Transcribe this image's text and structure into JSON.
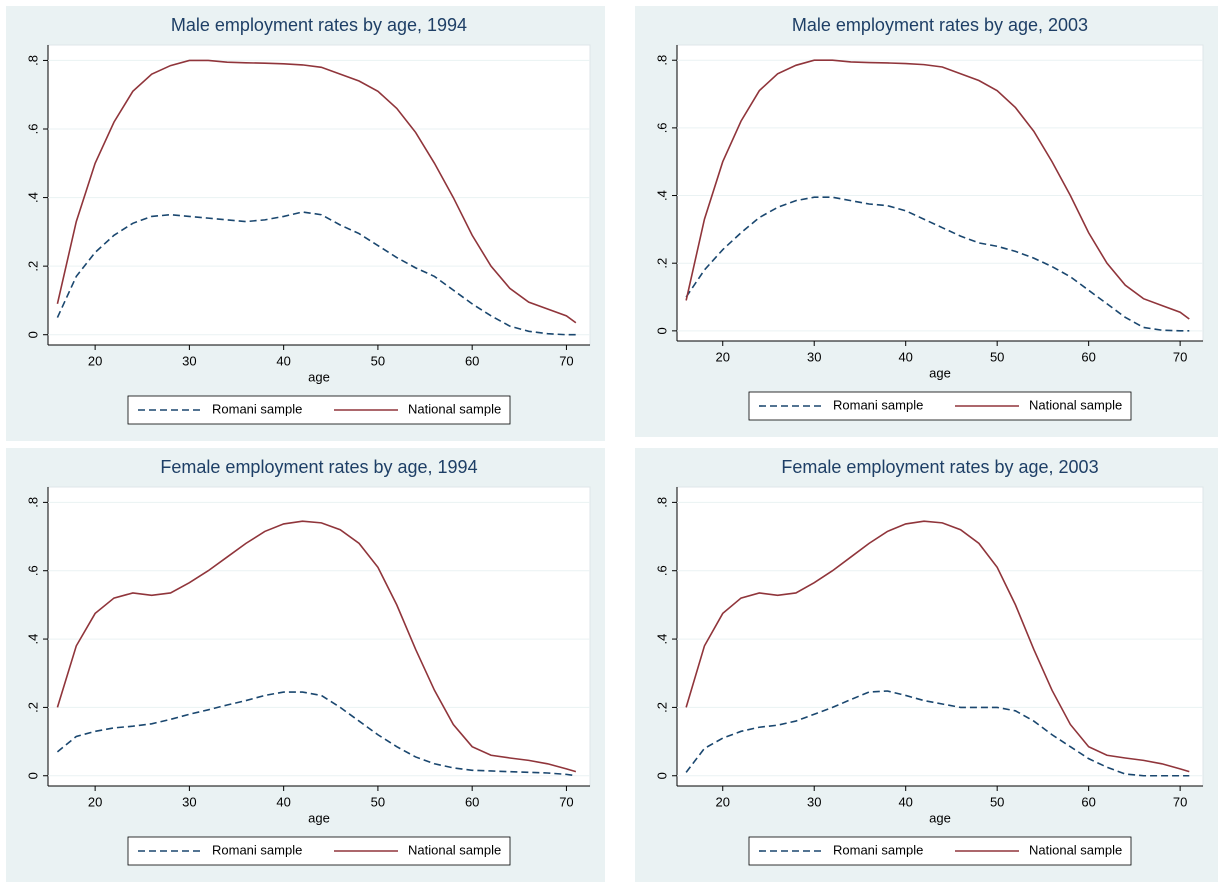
{
  "chart_data": [
    {
      "type": "line",
      "title": "Male employment rates by age, 1994",
      "x_label": "age",
      "x": [
        16,
        18,
        20,
        22,
        24,
        26,
        28,
        30,
        32,
        34,
        36,
        38,
        40,
        42,
        44,
        46,
        48,
        50,
        52,
        54,
        56,
        58,
        60,
        62,
        64,
        66,
        68,
        70,
        71
      ],
      "series": [
        {
          "name": "Romani sample",
          "color": "#1a476f",
          "line_style": "dashed",
          "values": [
            0.05,
            0.17,
            0.24,
            0.29,
            0.325,
            0.345,
            0.35,
            0.345,
            0.34,
            0.335,
            0.33,
            0.335,
            0.345,
            0.358,
            0.35,
            0.32,
            0.295,
            0.26,
            0.225,
            0.195,
            0.17,
            0.13,
            0.09,
            0.055,
            0.025,
            0.01,
            0.003,
            0,
            0
          ]
        },
        {
          "name": "National sample",
          "color": "#90353b",
          "line_style": "solid",
          "values": [
            0.09,
            0.33,
            0.5,
            0.62,
            0.71,
            0.76,
            0.785,
            0.8,
            0.8,
            0.795,
            0.793,
            0.792,
            0.79,
            0.787,
            0.78,
            0.76,
            0.74,
            0.71,
            0.66,
            0.59,
            0.5,
            0.4,
            0.29,
            0.2,
            0.135,
            0.095,
            0.075,
            0.055,
            0.035
          ]
        }
      ],
      "xlim": [
        15,
        72.5
      ],
      "xticks": [
        20,
        30,
        40,
        50,
        60,
        70
      ],
      "ylim": [
        -0.03,
        0.845
      ],
      "yticks": [
        0,
        {
          "value": 0.2,
          "label": ".2"
        },
        {
          "value": 0.4,
          "label": ".4"
        },
        {
          "value": 0.6,
          "label": ".6"
        },
        {
          "value": 0.8,
          "label": ".8"
        }
      ],
      "grid": true
    },
    {
      "type": "line",
      "title": "Male employment rates by age, 2003",
      "x_label": "age",
      "x": [
        16,
        18,
        20,
        22,
        24,
        26,
        28,
        30,
        32,
        34,
        36,
        38,
        40,
        42,
        44,
        46,
        48,
        50,
        52,
        54,
        56,
        58,
        60,
        62,
        64,
        66,
        68,
        70,
        71
      ],
      "series": [
        {
          "name": "Romani sample",
          "color": "#1a476f",
          "line_style": "dashed",
          "values": [
            0.1,
            0.18,
            0.24,
            0.29,
            0.335,
            0.365,
            0.385,
            0.395,
            0.395,
            0.385,
            0.375,
            0.37,
            0.355,
            0.33,
            0.305,
            0.28,
            0.26,
            0.25,
            0.235,
            0.215,
            0.19,
            0.16,
            0.12,
            0.08,
            0.04,
            0.01,
            0.002,
            0,
            0
          ]
        },
        {
          "name": "National sample",
          "color": "#90353b",
          "line_style": "solid",
          "values": [
            0.09,
            0.33,
            0.5,
            0.62,
            0.71,
            0.76,
            0.785,
            0.8,
            0.8,
            0.795,
            0.793,
            0.792,
            0.79,
            0.787,
            0.78,
            0.76,
            0.74,
            0.71,
            0.66,
            0.59,
            0.5,
            0.4,
            0.29,
            0.2,
            0.135,
            0.095,
            0.075,
            0.055,
            0.035
          ]
        }
      ],
      "xlim": [
        15,
        72.5
      ],
      "xticks": [
        20,
        30,
        40,
        50,
        60,
        70
      ],
      "ylim": [
        -0.03,
        0.845
      ],
      "yticks": [
        0,
        {
          "value": 0.2,
          "label": ".2"
        },
        {
          "value": 0.4,
          "label": ".4"
        },
        {
          "value": 0.6,
          "label": ".6"
        },
        {
          "value": 0.8,
          "label": ".8"
        }
      ],
      "grid": true
    },
    {
      "type": "line",
      "title": "Female employment rates by age, 1994",
      "x_label": "age",
      "x": [
        16,
        18,
        20,
        22,
        24,
        26,
        28,
        30,
        32,
        34,
        36,
        38,
        40,
        42,
        44,
        46,
        48,
        50,
        52,
        54,
        56,
        58,
        60,
        62,
        64,
        66,
        68,
        70,
        71
      ],
      "series": [
        {
          "name": "Romani sample",
          "color": "#1a476f",
          "line_style": "dashed",
          "values": [
            0.07,
            0.115,
            0.13,
            0.14,
            0.145,
            0.152,
            0.165,
            0.18,
            0.193,
            0.207,
            0.22,
            0.235,
            0.245,
            0.245,
            0.235,
            0.2,
            0.16,
            0.12,
            0.085,
            0.055,
            0.035,
            0.023,
            0.016,
            0.014,
            0.012,
            0.01,
            0.008,
            0.004,
            0
          ]
        },
        {
          "name": "National sample",
          "color": "#90353b",
          "line_style": "solid",
          "values": [
            0.2,
            0.38,
            0.475,
            0.52,
            0.535,
            0.528,
            0.535,
            0.565,
            0.6,
            0.64,
            0.68,
            0.715,
            0.737,
            0.745,
            0.74,
            0.72,
            0.68,
            0.61,
            0.5,
            0.37,
            0.25,
            0.15,
            0.085,
            0.06,
            0.052,
            0.045,
            0.035,
            0.02,
            0.012
          ]
        }
      ],
      "xlim": [
        15,
        72.5
      ],
      "xticks": [
        20,
        30,
        40,
        50,
        60,
        70
      ],
      "ylim": [
        -0.03,
        0.845
      ],
      "yticks": [
        0,
        {
          "value": 0.2,
          "label": ".2"
        },
        {
          "value": 0.4,
          "label": ".4"
        },
        {
          "value": 0.6,
          "label": ".6"
        },
        {
          "value": 0.8,
          "label": ".8"
        }
      ],
      "grid": true
    },
    {
      "type": "line",
      "title": "Female employment rates by age, 2003",
      "x_label": "age",
      "x": [
        16,
        18,
        20,
        22,
        24,
        26,
        28,
        30,
        32,
        34,
        36,
        38,
        40,
        42,
        44,
        46,
        48,
        50,
        52,
        54,
        56,
        58,
        60,
        62,
        64,
        66,
        68,
        70,
        71
      ],
      "series": [
        {
          "name": "Romani sample",
          "color": "#1a476f",
          "line_style": "dashed",
          "values": [
            0.01,
            0.08,
            0.11,
            0.13,
            0.142,
            0.148,
            0.16,
            0.18,
            0.2,
            0.223,
            0.245,
            0.248,
            0.235,
            0.22,
            0.21,
            0.2,
            0.2,
            0.2,
            0.19,
            0.16,
            0.12,
            0.085,
            0.05,
            0.025,
            0.005,
            0,
            0,
            0,
            0
          ]
        },
        {
          "name": "National sample",
          "color": "#90353b",
          "line_style": "solid",
          "values": [
            0.2,
            0.38,
            0.475,
            0.52,
            0.535,
            0.528,
            0.535,
            0.565,
            0.6,
            0.64,
            0.68,
            0.715,
            0.737,
            0.745,
            0.74,
            0.72,
            0.68,
            0.61,
            0.5,
            0.37,
            0.25,
            0.15,
            0.085,
            0.06,
            0.052,
            0.045,
            0.035,
            0.02,
            0.012
          ]
        }
      ],
      "xlim": [
        15,
        72.5
      ],
      "xticks": [
        20,
        30,
        40,
        50,
        60,
        70
      ],
      "ylim": [
        -0.03,
        0.845
      ],
      "yticks": [
        0,
        {
          "value": 0.2,
          "label": ".2"
        },
        {
          "value": 0.4,
          "label": ".4"
        },
        {
          "value": 0.6,
          "label": ".6"
        },
        {
          "value": 0.8,
          "label": ".8"
        }
      ],
      "grid": true
    }
  ]
}
